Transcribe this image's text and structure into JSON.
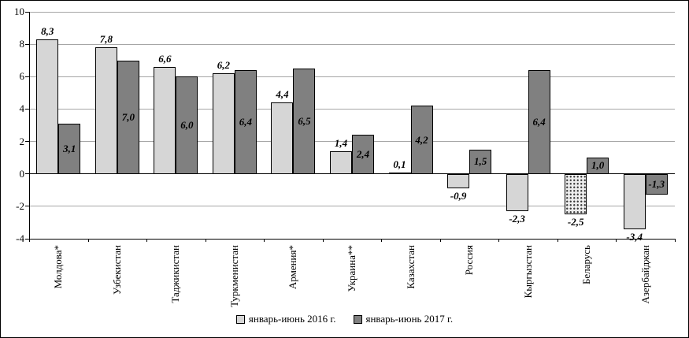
{
  "chart_data": {
    "type": "bar",
    "title": "",
    "xlabel": "",
    "ylabel": "",
    "categories": [
      "Молдова*",
      "Узбекистан",
      "Таджикистан",
      "Туркменистан",
      "Армения*",
      "Украина**",
      "Казахстан",
      "Россия",
      "Кыргызстан",
      "Беларусь",
      "Азербайджан"
    ],
    "series": [
      {
        "name": "январь-июнь 2016 г.",
        "color": "#d6d6d6",
        "border_color": "#000000",
        "values": [
          8.3,
          7.8,
          6.6,
          6.2,
          4.4,
          1.4,
          0.1,
          -0.9,
          -2.3,
          -2.5,
          -3.4
        ],
        "labels": [
          "8,3",
          "7,8",
          "6,6",
          "6,2",
          "4,4",
          "1,4",
          "0,1",
          "-0,9",
          "-2,3",
          "-2,5",
          "-3,4"
        ],
        "patterns": [
          null,
          null,
          null,
          null,
          null,
          null,
          null,
          null,
          null,
          "dots",
          null
        ]
      },
      {
        "name": "январь-июнь 2017 г.",
        "color": "#808080",
        "border_color": "#000000",
        "values": [
          3.1,
          7.0,
          6.0,
          6.4,
          6.5,
          2.4,
          4.2,
          1.5,
          6.4,
          1.0,
          -1.3
        ],
        "labels": [
          "3,1",
          "7,0",
          "6,0",
          "6,4",
          "6,5",
          "2,4",
          "4,2",
          "1,5",
          "6,4",
          "1,0",
          "-1,3"
        ],
        "patterns": [
          null,
          null,
          null,
          null,
          null,
          null,
          null,
          null,
          null,
          null,
          null
        ]
      }
    ],
    "ylim": [
      -4,
      10
    ],
    "yticks": [
      10,
      8,
      6,
      4,
      2,
      0,
      -2,
      -4
    ],
    "grid": true,
    "gridline_color": "#a6a6a6",
    "axis_color": "#000000",
    "legend_position": "bottom"
  }
}
